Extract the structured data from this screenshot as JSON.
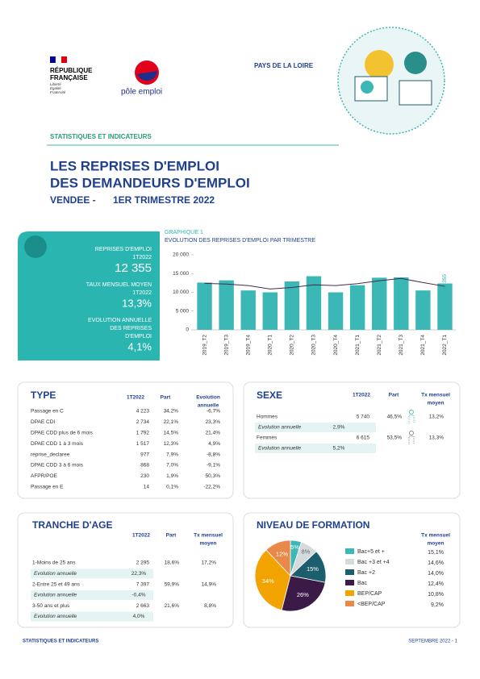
{
  "header": {
    "republique": [
      "RÉPUBLIQUE",
      "FRANÇAISE"
    ],
    "devise": [
      "Liberté",
      "Égalité",
      "Fraternité"
    ],
    "logo": "pôle emploi",
    "region": "PAYS DE LA LOIRE"
  },
  "section": "STATISTIQUES ET INDICATEURS",
  "title": [
    "LES REPRISES D'EMPLOI",
    "DES DEMANDEURS D'EMPLOI"
  ],
  "subtitle": [
    "VENDEE -",
    "1ER TRIMESTRE 2022"
  ],
  "kpis": [
    {
      "label": [
        "REPRISES D'EMPLOI",
        "1T2022"
      ],
      "value": "12 355"
    },
    {
      "label": [
        "TAUX MENSUEL MOYEN",
        "1T2022"
      ],
      "value": "13,3%"
    },
    {
      "label": [
        "EVOLUTION ANNUELLE",
        "DES REPRISES",
        "D'EMPLOI"
      ],
      "value": "4,1%"
    }
  ],
  "chart_data": [
    {
      "type": "bar",
      "label": "GRAPHIQUE 1",
      "title": "EVOLUTION DES REPRISES D'EMPLOI PAR TRIMESTRE",
      "categories": [
        "2019_T2",
        "2019_T3",
        "2019_T4",
        "2020_T1",
        "2020_T2",
        "2020_T3",
        "2020_T4",
        "2021_T1",
        "2021_T2",
        "2021_T3",
        "2021_T4",
        "2022_T1"
      ],
      "series": [
        {
          "color": "#3bb8b6",
          "values": [
            12600,
            13200,
            10500,
            10000,
            12900,
            14300,
            10000,
            11900,
            13900,
            14000,
            10500,
            12355
          ],
          "value_labels": [
            null,
            null,
            null,
            null,
            null,
            null,
            null,
            null,
            null,
            null,
            null,
            "12 355"
          ]
        },
        {
          "type": "line",
          "color": "#4a2a4a",
          "values": [
            12400,
            12200,
            11800,
            10900,
            11300,
            12000,
            11800,
            12300,
            13100,
            13700,
            12600,
            11600
          ]
        }
      ],
      "ylim": [
        0,
        20000
      ],
      "yticks": [
        {
          "value": 0,
          "label": "0"
        },
        {
          "value": 5000,
          "label": "5 000"
        },
        {
          "value": 10000,
          "label": "10 000"
        },
        {
          "value": 15000,
          "label": "15 000"
        },
        {
          "value": 20000,
          "label": "20 000"
        }
      ],
      "grid": false
    },
    {
      "type": "pie",
      "categories": [
        "Bac+5 et +",
        "Bac +3 et +4",
        "Bac +2",
        "Bac",
        "BEP/CAP",
        "<BEP/CAP"
      ],
      "values": [
        5,
        8,
        15,
        26,
        34,
        12
      ],
      "value_labels": [
        "5%",
        "8%",
        "15%",
        "26%",
        "34%",
        "12%"
      ],
      "colors": [
        "#3bb8b6",
        "#d5dadd",
        "#1d5e6e",
        "#3b1a48",
        "#f2a300",
        "#e8894a"
      ]
    }
  ],
  "tables": {
    "type": {
      "title": "TYPE",
      "columns": [
        [
          "1T2022"
        ],
        [
          "Part"
        ],
        [
          "Evolution",
          "annuelle"
        ]
      ],
      "rows": [
        [
          "Passage en C",
          "4 223",
          "34,2%",
          "-6,7%"
        ],
        [
          "DPAE CDI",
          "2 734",
          "22,1%",
          "23,3%"
        ],
        [
          "DPAE CDD plus de 6 mois",
          "1 792",
          "14,5%",
          "21,4%"
        ],
        [
          "DPAE CDD 1 à 3 mois",
          "1 517",
          "12,3%",
          "4,9%"
        ],
        [
          "reprise_declaree",
          "977",
          "7,9%",
          "-8,8%"
        ],
        [
          "DPAE CDD 3 à 6 mois",
          "868",
          "7,0%",
          "-9,1%"
        ],
        [
          "AFPR/POE",
          "230",
          "1,9%",
          "50,3%"
        ],
        [
          "Passage en E",
          "14",
          "0,1%",
          "-22,2%"
        ]
      ]
    },
    "sexe": {
      "title": "SEXE",
      "columns": [
        [
          "1T2022"
        ],
        [
          "Part"
        ],
        [
          "Tx mensuel",
          "moyen"
        ]
      ],
      "rows": [
        [
          "Hommes",
          "5 740",
          "46,5%",
          "13,2%"
        ],
        [
          "Evolution annuelle",
          "2,9%"
        ],
        [
          "Femmes",
          "6 615",
          "53,5%",
          "13,3%"
        ],
        [
          "Evolution annuelle",
          "5,2%"
        ]
      ]
    },
    "age": {
      "title": "TRANCHE D'AGE",
      "columns": [
        [
          "1T2022"
        ],
        [
          "Part"
        ],
        [
          "Tx mensuel",
          "moyen"
        ]
      ],
      "rows": [
        [
          "1-Moins de 25 ans",
          "2 295",
          "18,6%",
          "17,2%"
        ],
        [
          "Evolution annuelle",
          "22,3%"
        ],
        [
          "2-Entre 25 et 49 ans",
          "7 397",
          "59,9%",
          "14,9%"
        ],
        [
          "Evolution annuelle",
          "-0,4%"
        ],
        [
          "3-50 ans et plus",
          "2 663",
          "21,6%",
          "8,8%"
        ],
        [
          "Evolution annuelle",
          "4,0%"
        ]
      ]
    },
    "formation": {
      "title": "NIVEAU DE FORMATION",
      "column": [
        "Tx mensuel",
        "moyen"
      ],
      "values": [
        "15,1%",
        "14,6%",
        "14,0%",
        "12,4%",
        "10,8%",
        "9,2%"
      ]
    }
  },
  "footer": {
    "left": "STATISTIQUES ET INDICATEURS",
    "right": "SEPTEMBRE 2022 - 1"
  }
}
